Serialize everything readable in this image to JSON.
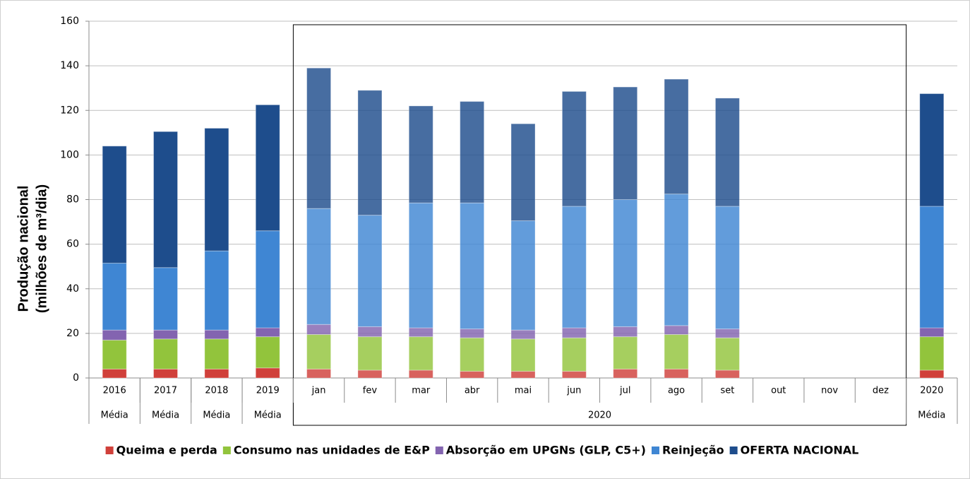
{
  "chart_data": {
    "type": "stacked_bar",
    "y_label": [
      "Produção nacional",
      "(milhões de m³/dia)"
    ],
    "categories": [
      "2016",
      "2017",
      "2018",
      "2019",
      "jan",
      "fev",
      "mar",
      "abr",
      "mai",
      "jun",
      "jul",
      "ago",
      "set",
      "out",
      "nov",
      "dez",
      "2020"
    ],
    "groups": [
      {
        "label": "Média",
        "span": 1
      },
      {
        "label": "Média",
        "span": 1
      },
      {
        "label": "Média",
        "span": 1
      },
      {
        "label": "Média",
        "span": 1
      },
      {
        "label": "2020",
        "span": 12,
        "boxed": true
      },
      {
        "label": "Média",
        "span": 1
      }
    ],
    "series": [
      {
        "name": "Queima e perda",
        "color": "#d0403a",
        "values": [
          4,
          4,
          4,
          4.5,
          4,
          3.5,
          3.5,
          3,
          3,
          3,
          4,
          4,
          3.5,
          null,
          null,
          null,
          3.5
        ]
      },
      {
        "name": "Consumo nas unidades de E&P",
        "color": "#92c43c",
        "values": [
          13,
          13.5,
          13.5,
          14,
          15.5,
          15,
          15,
          15,
          14.5,
          15,
          14.5,
          15.5,
          14.5,
          null,
          null,
          null,
          15
        ]
      },
      {
        "name": "Absorção em UPGNs (GLP, C5+)",
        "color": "#8364b0",
        "values": [
          4.5,
          4,
          4,
          4,
          4.5,
          4.5,
          4,
          4,
          4,
          4.5,
          4.5,
          4,
          4,
          null,
          null,
          null,
          4
        ]
      },
      {
        "name": "Reinjeção",
        "color": "#3f86d3",
        "values": [
          30,
          28,
          35.5,
          43.5,
          52,
          50,
          56,
          56.5,
          49,
          54.5,
          57,
          59,
          55,
          null,
          null,
          null,
          54.5
        ]
      },
      {
        "name": "OFERTA NACIONAL",
        "color": "#1e4d8c",
        "values": [
          52.5,
          61,
          55,
          56.5,
          63,
          56,
          43.5,
          45.5,
          43.5,
          51.5,
          50.5,
          51.5,
          48.5,
          null,
          null,
          null,
          50.5
        ]
      }
    ],
    "ylim": [
      0,
      160
    ],
    "yticks": [
      0,
      20,
      40,
      60,
      80,
      100,
      120,
      140,
      160
    ],
    "grid": true,
    "legend": "bottom"
  }
}
